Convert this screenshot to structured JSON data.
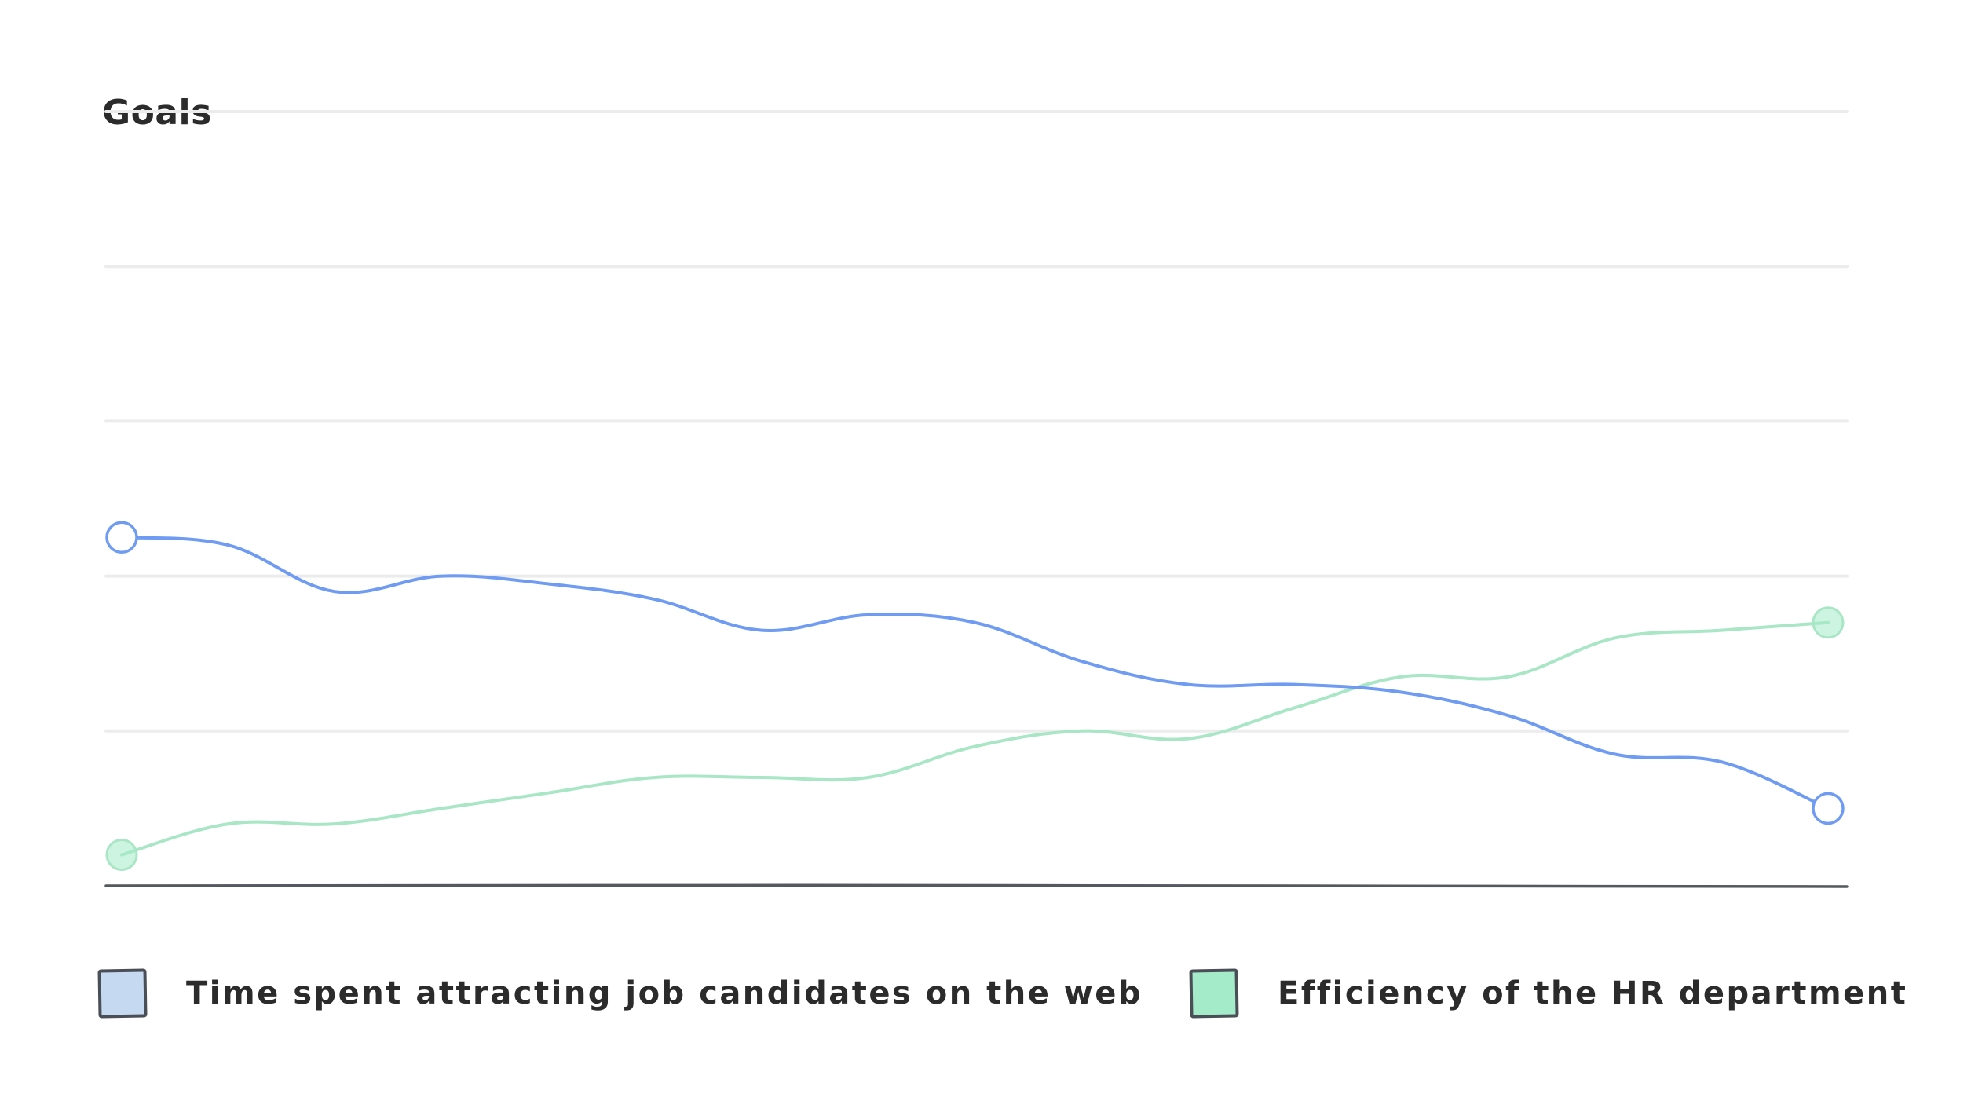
{
  "chart_data": {
    "type": "line",
    "title": "Goals",
    "xlabel": "",
    "ylabel": "",
    "grid": true,
    "legend_position": "bottom",
    "ylim": [
      0,
      100
    ],
    "x": [
      0,
      1,
      2,
      3,
      4,
      5,
      6,
      7,
      8,
      9,
      10,
      11,
      12,
      13,
      14,
      15,
      16
    ],
    "series": [
      {
        "name": "Time spent attracting job candidates on the web",
        "color": "#6f9cf2",
        "fill": "#c5d9f0",
        "values": [
          45,
          44,
          38,
          40,
          39,
          37,
          33,
          35,
          34,
          29,
          26,
          26,
          25,
          22,
          17,
          16,
          10
        ]
      },
      {
        "name": "Efficiency of the HR department",
        "color": "#a8e6c6",
        "fill": "#a4ebc9",
        "values": [
          4,
          8,
          8,
          10,
          12,
          14,
          14,
          14,
          18,
          20,
          19,
          23,
          27,
          27,
          32,
          33,
          34
        ]
      }
    ]
  }
}
